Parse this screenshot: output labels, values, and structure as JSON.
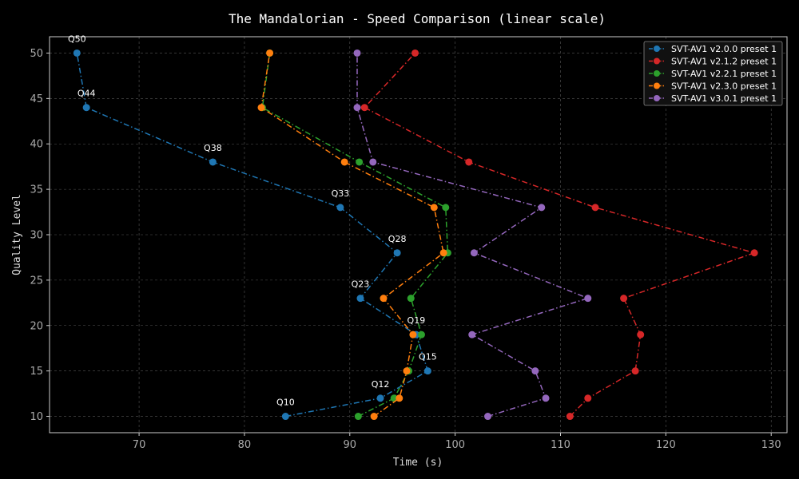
{
  "chart_data": {
    "type": "line",
    "title": "The Mandalorian - Speed Comparison (linear scale)",
    "xlabel": "Time (s)",
    "ylabel": "Quality Level",
    "xlim": [
      61.5,
      131.5
    ],
    "ylim": [
      8.2,
      51.8
    ],
    "xticks": [
      70,
      80,
      90,
      100,
      110,
      120,
      130
    ],
    "yticks": [
      10,
      15,
      20,
      25,
      30,
      35,
      40,
      45,
      50
    ],
    "grid": true,
    "legend_position": "top-right",
    "series": [
      {
        "name": "SVT-AV1 v2.0.0 preset 1",
        "color": "#1f77b4",
        "points": [
          {
            "q": "Q10",
            "x": 83.9,
            "y": 10
          },
          {
            "q": "Q12",
            "x": 92.9,
            "y": 12
          },
          {
            "q": "Q15",
            "x": 97.4,
            "y": 15
          },
          {
            "q": "Q19",
            "x": 96.3,
            "y": 19
          },
          {
            "q": "Q23",
            "x": 91.0,
            "y": 23
          },
          {
            "q": "Q28",
            "x": 94.5,
            "y": 28
          },
          {
            "q": "Q33",
            "x": 89.1,
            "y": 33
          },
          {
            "q": "Q38",
            "x": 77.0,
            "y": 38
          },
          {
            "q": "Q44",
            "x": 65.0,
            "y": 44
          },
          {
            "q": "Q50",
            "x": 64.1,
            "y": 50
          }
        ]
      },
      {
        "name": "SVT-AV1 v2.1.2 preset 1",
        "color": "#d62728",
        "points": [
          {
            "x": 110.9,
            "y": 10
          },
          {
            "x": 112.6,
            "y": 12
          },
          {
            "x": 117.1,
            "y": 15
          },
          {
            "x": 117.6,
            "y": 19
          },
          {
            "x": 116.0,
            "y": 23
          },
          {
            "x": 128.4,
            "y": 28
          },
          {
            "x": 113.3,
            "y": 33
          },
          {
            "x": 101.3,
            "y": 38
          },
          {
            "x": 91.4,
            "y": 44
          },
          {
            "x": 96.2,
            "y": 50
          }
        ]
      },
      {
        "name": "SVT-AV1 v2.2.1 preset 1",
        "color": "#2ca02c",
        "points": [
          {
            "x": 90.8,
            "y": 10
          },
          {
            "x": 94.2,
            "y": 12
          },
          {
            "x": 95.6,
            "y": 15
          },
          {
            "x": 96.8,
            "y": 19
          },
          {
            "x": 95.8,
            "y": 23
          },
          {
            "x": 99.3,
            "y": 28
          },
          {
            "x": 99.1,
            "y": 33
          },
          {
            "x": 90.9,
            "y": 38
          },
          {
            "x": 81.7,
            "y": 44
          },
          {
            "x": 82.4,
            "y": 50
          }
        ]
      },
      {
        "name": "SVT-AV1 v2.3.0 preset 1",
        "color": "#ff7f0e",
        "points": [
          {
            "x": 92.3,
            "y": 10
          },
          {
            "x": 94.7,
            "y": 12
          },
          {
            "x": 95.4,
            "y": 15
          },
          {
            "x": 96.0,
            "y": 19
          },
          {
            "x": 93.2,
            "y": 23
          },
          {
            "x": 98.9,
            "y": 28
          },
          {
            "x": 98.0,
            "y": 33
          },
          {
            "x": 89.5,
            "y": 38
          },
          {
            "x": 81.6,
            "y": 44
          },
          {
            "x": 82.4,
            "y": 50
          }
        ]
      },
      {
        "name": "SVT-AV1 v3.0.1 preset 1",
        "color": "#9467bd",
        "points": [
          {
            "x": 103.1,
            "y": 10
          },
          {
            "x": 108.6,
            "y": 12
          },
          {
            "x": 107.6,
            "y": 15
          },
          {
            "x": 101.6,
            "y": 19
          },
          {
            "x": 112.6,
            "y": 23
          },
          {
            "x": 101.8,
            "y": 28
          },
          {
            "x": 108.2,
            "y": 33
          },
          {
            "x": 92.2,
            "y": 38
          },
          {
            "x": 90.7,
            "y": 44
          },
          {
            "x": 90.7,
            "y": 50
          }
        ]
      }
    ]
  }
}
